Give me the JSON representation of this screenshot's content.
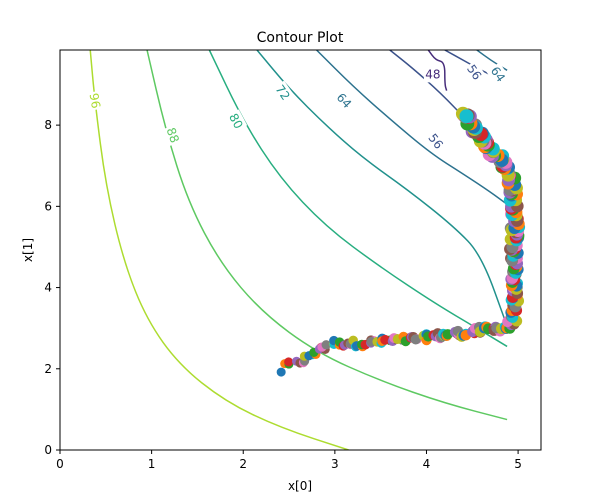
{
  "chart_data": {
    "type": "contour",
    "title": "Contour Plot",
    "xlabel": "x[0]",
    "ylabel": "x[1]",
    "xlim": [
      0,
      5.25
    ],
    "ylim": [
      0,
      9.85
    ],
    "xticks": [
      0,
      1,
      2,
      3,
      4,
      5
    ],
    "yticks": [
      0,
      2,
      4,
      6,
      8
    ],
    "grid": false,
    "contours": [
      {
        "level": 96,
        "color": "#addc30",
        "points": [
          [
            0.33,
            9.85
          ],
          [
            0.38,
            8.6
          ],
          [
            0.5,
            6.5
          ],
          [
            0.7,
            4.6
          ],
          [
            0.95,
            3.2
          ],
          [
            1.3,
            2.1
          ],
          [
            1.8,
            1.2
          ],
          [
            2.4,
            0.55
          ],
          [
            3.15,
            0.0
          ]
        ]
      },
      {
        "level": 88,
        "color": "#5ec962",
        "points": [
          [
            0.95,
            9.85
          ],
          [
            1.15,
            7.9
          ],
          [
            1.4,
            6.1
          ],
          [
            1.75,
            4.6
          ],
          [
            2.2,
            3.4
          ],
          [
            2.8,
            2.4
          ],
          [
            3.5,
            1.7
          ],
          [
            4.2,
            1.15
          ],
          [
            4.88,
            0.75
          ]
        ]
      },
      {
        "level": 80,
        "color": "#28ae80",
        "points": [
          [
            1.63,
            9.85
          ],
          [
            2.0,
            8.1
          ],
          [
            2.4,
            6.7
          ],
          [
            2.9,
            5.5
          ],
          [
            3.5,
            4.5
          ],
          [
            4.1,
            3.6
          ],
          [
            4.55,
            3.0
          ],
          [
            4.88,
            2.55
          ]
        ]
      },
      {
        "level": 72,
        "color": "#21918c",
        "points": [
          [
            2.15,
            9.85
          ],
          [
            2.5,
            8.9
          ],
          [
            2.9,
            8.0
          ],
          [
            3.3,
            7.2
          ],
          [
            3.8,
            6.4
          ],
          [
            4.3,
            5.5
          ],
          [
            4.6,
            4.8
          ],
          [
            4.88,
            3.05
          ]
        ]
      },
      {
        "level": 64,
        "color": "#2c728e",
        "points": [
          [
            2.8,
            9.85
          ],
          [
            3.2,
            8.95
          ],
          [
            3.6,
            8.15
          ],
          [
            4.05,
            7.3
          ],
          [
            4.4,
            6.8
          ],
          [
            4.7,
            6.35
          ],
          [
            4.88,
            6.05
          ]
        ]
      },
      {
        "level": 56,
        "color": "#3b528b",
        "points": [
          [
            3.6,
            9.85
          ],
          [
            3.85,
            9.4
          ],
          [
            4.15,
            8.8
          ],
          [
            4.45,
            8.1
          ],
          [
            4.7,
            7.55
          ],
          [
            4.88,
            7.2
          ]
        ]
      },
      {
        "level": 48,
        "color": "#472d7b",
        "points": [
          [
            4.02,
            9.85
          ],
          [
            4.1,
            9.6
          ],
          [
            4.2,
            9.55
          ],
          [
            4.2,
            9.0
          ],
          [
            4.22,
            8.85
          ]
        ]
      },
      {
        "level": 56,
        "color": "#3b528b",
        "points": [
          [
            4.2,
            9.85
          ],
          [
            4.4,
            9.6
          ],
          [
            4.6,
            9.35
          ],
          [
            4.82,
            9.1
          ]
        ]
      },
      {
        "level": 64,
        "color": "#2c728e",
        "points": [
          [
            4.55,
            9.85
          ],
          [
            4.7,
            9.6
          ],
          [
            4.88,
            9.35
          ]
        ]
      }
    ],
    "contour_labels": [
      {
        "text": "96",
        "x": 0.38,
        "y": 8.6,
        "color": "#addc30",
        "rotate": 80
      },
      {
        "text": "88",
        "x": 1.23,
        "y": 7.75,
        "color": "#5ec962",
        "rotate": 70
      },
      {
        "text": "80",
        "x": 1.92,
        "y": 8.1,
        "color": "#28ae80",
        "rotate": 62
      },
      {
        "text": "72",
        "x": 2.43,
        "y": 8.8,
        "color": "#21918c",
        "rotate": 55
      },
      {
        "text": "64",
        "x": 3.1,
        "y": 8.6,
        "color": "#2c728e",
        "rotate": 48
      },
      {
        "text": "56",
        "x": 4.1,
        "y": 7.6,
        "color": "#3b528b",
        "rotate": 52
      },
      {
        "text": "48",
        "x": 4.07,
        "y": 9.25,
        "color": "#472d7b",
        "rotate": 0
      },
      {
        "text": "56",
        "x": 4.52,
        "y": 9.3,
        "color": "#3b528b",
        "rotate": 55
      },
      {
        "text": "64",
        "x": 4.78,
        "y": 9.25,
        "color": "#2c728e",
        "rotate": 55
      }
    ],
    "scatter_palette": [
      "#1f77b4",
      "#ff7f0e",
      "#2ca02c",
      "#d62728",
      "#9467bd",
      "#8c564b",
      "#e377c2",
      "#7f7f7f",
      "#bcbd22",
      "#17becf"
    ],
    "scatter_path": [
      [
        2.4,
        1.95
      ],
      [
        2.45,
        2.07
      ],
      [
        2.55,
        2.12
      ],
      [
        2.65,
        2.22
      ],
      [
        2.75,
        2.32
      ],
      [
        2.8,
        2.45
      ],
      [
        2.88,
        2.55
      ],
      [
        2.97,
        2.65
      ],
      [
        3.05,
        2.6
      ],
      [
        3.1,
        2.65
      ],
      [
        3.25,
        2.62
      ],
      [
        3.4,
        2.65
      ],
      [
        3.55,
        2.68
      ],
      [
        3.7,
        2.72
      ],
      [
        3.85,
        2.72
      ],
      [
        4.0,
        2.78
      ],
      [
        4.15,
        2.82
      ],
      [
        4.3,
        2.85
      ],
      [
        4.45,
        2.88
      ],
      [
        4.6,
        2.95
      ],
      [
        4.75,
        3.0
      ],
      [
        4.9,
        3.02
      ],
      [
        4.95,
        3.3
      ],
      [
        4.97,
        3.7
      ],
      [
        4.96,
        4.1
      ],
      [
        4.97,
        4.5
      ],
      [
        4.95,
        4.9
      ],
      [
        4.96,
        5.3
      ],
      [
        4.97,
        5.7
      ],
      [
        4.96,
        6.1
      ],
      [
        4.95,
        6.5
      ],
      [
        4.9,
        6.8
      ],
      [
        4.82,
        7.1
      ],
      [
        4.72,
        7.35
      ],
      [
        4.62,
        7.6
      ],
      [
        4.55,
        7.85
      ],
      [
        4.5,
        8.05
      ],
      [
        4.45,
        8.2
      ],
      [
        4.4,
        8.25
      ]
    ],
    "scatter_count": 260
  }
}
